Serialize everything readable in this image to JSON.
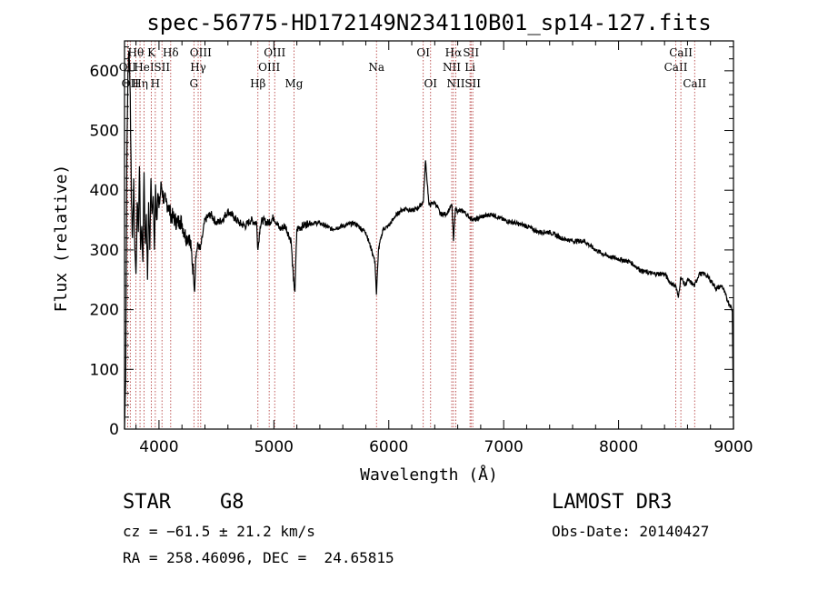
{
  "chart_data": {
    "type": "line",
    "title": "spec-56775-HD172149N234110B01_sp14-127.fits",
    "xlabel": "Wavelength (Å)",
    "ylabel": "Flux (relative)",
    "xlim": [
      3700,
      9000
    ],
    "ylim": [
      0,
      650
    ],
    "xticks": [
      4000,
      5000,
      6000,
      7000,
      8000,
      9000
    ],
    "yticks": [
      0,
      100,
      200,
      300,
      400,
      500,
      600
    ],
    "grid": false,
    "series": [
      {
        "x": [
          3700,
          3710,
          3720,
          3730,
          3740,
          3750,
          3760,
          3770,
          3780,
          3790,
          3800,
          3810,
          3820,
          3830,
          3840,
          3850,
          3860,
          3870,
          3880,
          3890,
          3900,
          3910,
          3920,
          3930,
          3940,
          3950,
          3960,
          3970,
          3980,
          3990,
          4000,
          4020,
          4040,
          4060,
          4080,
          4100,
          4120,
          4140,
          4160,
          4180,
          4200,
          4220,
          4240,
          4260,
          4280,
          4300,
          4310,
          4320,
          4340,
          4360,
          4380,
          4400,
          4450,
          4500,
          4550,
          4600,
          4650,
          4700,
          4750,
          4800,
          4850,
          4861,
          4880,
          4900,
          4950,
          5000,
          5050,
          5100,
          5150,
          5170,
          5183,
          5200,
          5250,
          5300,
          5400,
          5500,
          5600,
          5700,
          5800,
          5850,
          5880,
          5893,
          5910,
          5950,
          6000,
          6050,
          6100,
          6150,
          6200,
          6250,
          6300,
          6320,
          6350,
          6400,
          6450,
          6500,
          6550,
          6563,
          6580,
          6600,
          6650,
          6700,
          6750,
          6800,
          6900,
          7000,
          7100,
          7200,
          7300,
          7400,
          7500,
          7600,
          7700,
          7800,
          7900,
          8000,
          8100,
          8200,
          8300,
          8400,
          8450,
          8498,
          8520,
          8542,
          8580,
          8600,
          8662,
          8700,
          8750,
          8800,
          8850,
          8900,
          8950,
          8990,
          9000
        ],
        "y": [
          0,
          80,
          450,
          600,
          630,
          560,
          380,
          320,
          420,
          300,
          260,
          380,
          330,
          440,
          300,
          340,
          280,
          430,
          310,
          360,
          250,
          380,
          300,
          420,
          360,
          390,
          300,
          410,
          350,
          395,
          370,
          410,
          385,
          380,
          375,
          360,
          355,
          350,
          345,
          350,
          345,
          330,
          320,
          325,
          300,
          260,
          230,
          290,
          310,
          300,
          325,
          350,
          360,
          345,
          350,
          365,
          355,
          345,
          340,
          350,
          345,
          300,
          340,
          350,
          345,
          355,
          335,
          340,
          315,
          250,
          230,
          335,
          340,
          345,
          345,
          335,
          340,
          345,
          330,
          300,
          280,
          225,
          300,
          335,
          340,
          355,
          365,
          370,
          365,
          370,
          380,
          450,
          375,
          380,
          360,
          360,
          375,
          315,
          370,
          365,
          365,
          355,
          350,
          355,
          360,
          350,
          345,
          340,
          330,
          330,
          320,
          315,
          315,
          300,
          290,
          285,
          280,
          265,
          260,
          260,
          245,
          240,
          220,
          255,
          240,
          250,
          240,
          260,
          260,
          250,
          235,
          240,
          215,
          200,
          0
        ]
      }
    ],
    "lines": [
      {
        "wl": 3727,
        "label": "OII",
        "row": 2
      },
      {
        "wl": 3750,
        "label": "OII",
        "row": 3
      },
      {
        "wl": 3798,
        "label": "Hθ",
        "row": 1
      },
      {
        "wl": 3835,
        "label": "Hη",
        "row": 3
      },
      {
        "wl": 3870,
        "label": "HeI",
        "row": 2
      },
      {
        "wl": 3934,
        "label": "K",
        "row": 1
      },
      {
        "wl": 3968,
        "label": "H",
        "row": 3
      },
      {
        "wl": 4026,
        "label": "SII",
        "row": 2
      },
      {
        "wl": 4102,
        "label": "Hδ",
        "row": 1
      },
      {
        "wl": 4304,
        "label": "G",
        "row": 3
      },
      {
        "wl": 4341,
        "label": "Hγ",
        "row": 2
      },
      {
        "wl": 4363,
        "label": "OIII",
        "row": 1
      },
      {
        "wl": 4861,
        "label": "Hβ",
        "row": 3
      },
      {
        "wl": 4959,
        "label": "OIII",
        "row": 2
      },
      {
        "wl": 5007,
        "label": "OIII",
        "row": 1
      },
      {
        "wl": 5175,
        "label": "Mg",
        "row": 3
      },
      {
        "wl": 5893,
        "label": "Na",
        "row": 2
      },
      {
        "wl": 6300,
        "label": "OI",
        "row": 1
      },
      {
        "wl": 6364,
        "label": "OI",
        "row": 3
      },
      {
        "wl": 6548,
        "label": "NII",
        "row": 2
      },
      {
        "wl": 6563,
        "label": "Hα",
        "row": 1
      },
      {
        "wl": 6583,
        "label": "NII",
        "row": 3
      },
      {
        "wl": 6716,
        "label": "SII",
        "row": 1
      },
      {
        "wl": 6707,
        "label": "Li",
        "row": 2
      },
      {
        "wl": 6731,
        "label": "SII",
        "row": 3
      },
      {
        "wl": 8498,
        "label": "CaII",
        "row": 2
      },
      {
        "wl": 8542,
        "label": "CaII",
        "row": 1
      },
      {
        "wl": 8662,
        "label": "CaII",
        "row": 3
      }
    ]
  },
  "info": {
    "class": "STAR",
    "subclass": "G8",
    "cz": "cz = −61.5 ± 21.2 km/s",
    "radec": "RA = 258.46096, DEC =  24.65815",
    "survey": "LAMOST DR3",
    "obs_date": "Obs-Date: 20140427"
  },
  "colors": {
    "spectrum": "#000000",
    "line_markers": "#b03030"
  }
}
